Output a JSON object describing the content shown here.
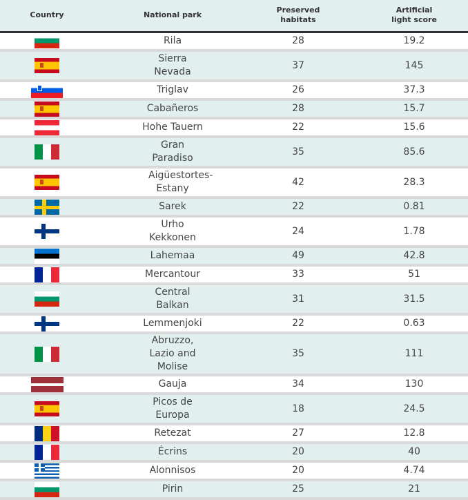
{
  "headers": {
    "country": "Country",
    "park": "National park",
    "habitats": "Preserved habitats",
    "light": "Artificial light score"
  },
  "rows": [
    {
      "flag": "flag-bulgaria",
      "code": "bg",
      "park": "Rila",
      "habitats": "28",
      "light": "19.2",
      "lines": 1
    },
    {
      "flag": "flag-spain",
      "code": "es",
      "park": "Sierra Nevada",
      "habitats": "37",
      "light": "145",
      "lines": 2
    },
    {
      "flag": "flag-slovenia",
      "code": "si",
      "park": "Triglav",
      "habitats": "26",
      "light": "37.3",
      "lines": 1
    },
    {
      "flag": "flag-spain",
      "code": "es",
      "park": "Cabañeros",
      "habitats": "28",
      "light": "15.7",
      "lines": 1
    },
    {
      "flag": "flag-austria",
      "code": "at",
      "park": "Hohe Tauern",
      "habitats": "22",
      "light": "15.6",
      "lines": 1
    },
    {
      "flag": "flag-italy",
      "code": "it",
      "park": "Gran Paradiso",
      "habitats": "35",
      "light": "85.6",
      "lines": 2
    },
    {
      "flag": "flag-spain",
      "code": "es",
      "park": "Aigüestortes-Estany",
      "habitats": "42",
      "light": "28.3",
      "lines": 2
    },
    {
      "flag": "flag-sweden",
      "code": "se",
      "park": "Sarek",
      "habitats": "22",
      "light": "0.81",
      "lines": 1
    },
    {
      "flag": "flag-finland",
      "code": "fi",
      "park": "Urho Kekkonen",
      "habitats": "24",
      "light": "1.78",
      "lines": 2
    },
    {
      "flag": "flag-estonia",
      "code": "ee",
      "park": "Lahemaa",
      "habitats": "49",
      "light": "42.8",
      "lines": 1
    },
    {
      "flag": "flag-france",
      "code": "fr",
      "park": "Mercantour",
      "habitats": "33",
      "light": "51",
      "lines": 1
    },
    {
      "flag": "flag-bulgaria",
      "code": "bg",
      "park": "Central Balkan",
      "habitats": "31",
      "light": "31.5",
      "lines": 2
    },
    {
      "flag": "flag-finland",
      "code": "fi",
      "park": "Lemmenjoki",
      "habitats": "22",
      "light": "0.63",
      "lines": 1
    },
    {
      "flag": "flag-italy",
      "code": "it",
      "park": "Abruzzo, Lazio and Molise",
      "habitats": "35",
      "light": "111",
      "lines": 3
    },
    {
      "flag": "flag-latvia",
      "code": "lv",
      "park": "Gauja",
      "habitats": "34",
      "light": "130",
      "lines": 1
    },
    {
      "flag": "flag-spain",
      "code": "es",
      "park": "Picos de Europa",
      "habitats": "18",
      "light": "24.5",
      "lines": 2
    },
    {
      "flag": "flag-romania",
      "code": "ro",
      "park": "Retezat",
      "habitats": "27",
      "light": "12.8",
      "lines": 1
    },
    {
      "flag": "flag-france",
      "code": "fr",
      "park": "Écrins",
      "habitats": "20",
      "light": "40",
      "lines": 1
    },
    {
      "flag": "flag-greece",
      "code": "gr",
      "park": "Alonnisos",
      "habitats": "20",
      "light": "4.74",
      "lines": 1
    },
    {
      "flag": "flag-bulgaria",
      "code": "bg",
      "park": "Pirin",
      "habitats": "25",
      "light": "21",
      "lines": 1
    }
  ]
}
